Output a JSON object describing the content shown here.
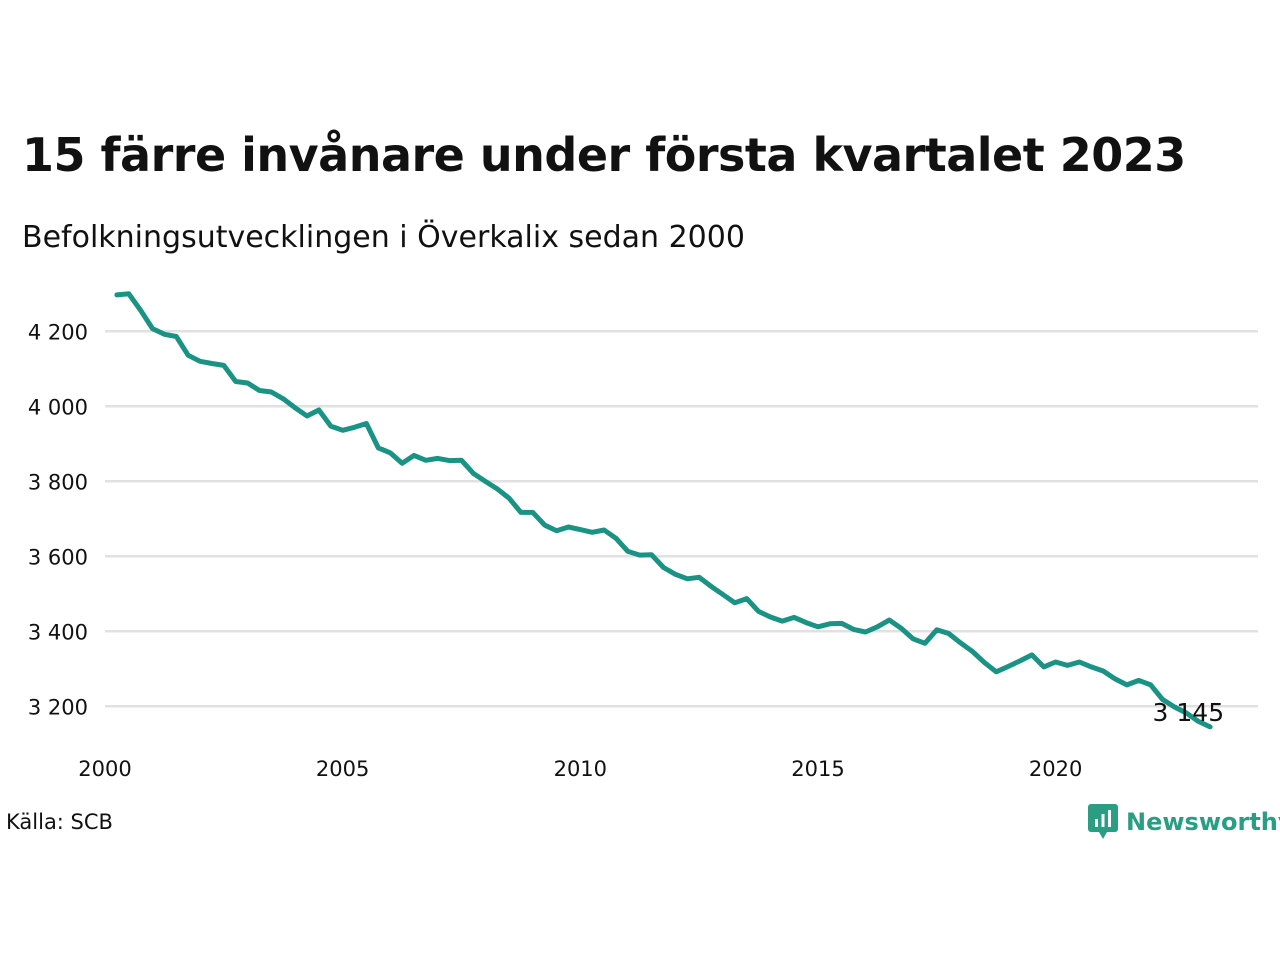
{
  "header": {
    "title": "15 färre invånare under första kvartalet 2023",
    "subtitle": "Befolkningsutvecklingen i Överkalix sedan 2000"
  },
  "footer": {
    "source": "Källa: SCB",
    "brand": "Newsworthy"
  },
  "colors": {
    "line": "#1a9384",
    "grid": "#e1e1e1",
    "brand": "#2a9d83"
  },
  "chart_data": {
    "type": "line",
    "xlim": [
      2000,
      2023.5
    ],
    "ylim": [
      3110,
      4310
    ],
    "x_ticks": [
      {
        "value": 2000,
        "label": "2000"
      },
      {
        "value": 2005,
        "label": "2005"
      },
      {
        "value": 2010,
        "label": "2010"
      },
      {
        "value": 2015,
        "label": "2015"
      },
      {
        "value": 2020,
        "label": "2020"
      }
    ],
    "y_ticks": [
      {
        "value": 3200,
        "label": "3 200"
      },
      {
        "value": 3400,
        "label": "3 400"
      },
      {
        "value": 3600,
        "label": "3 600"
      },
      {
        "value": 3800,
        "label": "3 800"
      },
      {
        "value": 4000,
        "label": "4 000"
      },
      {
        "value": 4200,
        "label": "4 200"
      }
    ],
    "grid": true,
    "end_label": "3 145",
    "series": [
      {
        "values": [
          [
            2000.25,
            4297
          ],
          [
            2000.5,
            4300
          ],
          [
            2000.75,
            4256
          ],
          [
            2001.0,
            4207
          ],
          [
            2001.25,
            4192
          ],
          [
            2001.5,
            4186
          ],
          [
            2001.75,
            4136
          ],
          [
            2002.0,
            4120
          ],
          [
            2002.25,
            4114
          ],
          [
            2002.5,
            4109
          ],
          [
            2002.75,
            4066
          ],
          [
            2003.0,
            4062
          ],
          [
            2003.25,
            4042
          ],
          [
            2003.5,
            4038
          ],
          [
            2003.75,
            4020
          ],
          [
            2004.0,
            3996
          ],
          [
            2004.25,
            3974
          ],
          [
            2004.5,
            3990
          ],
          [
            2004.75,
            3947
          ],
          [
            2005.0,
            3936
          ],
          [
            2005.25,
            3944
          ],
          [
            2005.5,
            3954
          ],
          [
            2005.75,
            3889
          ],
          [
            2006.0,
            3876
          ],
          [
            2006.25,
            3848
          ],
          [
            2006.5,
            3869
          ],
          [
            2006.75,
            3856
          ],
          [
            2007.0,
            3861
          ],
          [
            2007.25,
            3855
          ],
          [
            2007.5,
            3856
          ],
          [
            2007.75,
            3821
          ],
          [
            2008.0,
            3800
          ],
          [
            2008.25,
            3780
          ],
          [
            2008.5,
            3755
          ],
          [
            2008.75,
            3717
          ],
          [
            2009.0,
            3717
          ],
          [
            2009.25,
            3683
          ],
          [
            2009.5,
            3668
          ],
          [
            2009.75,
            3678
          ],
          [
            2010.0,
            3671
          ],
          [
            2010.25,
            3664
          ],
          [
            2010.5,
            3670
          ],
          [
            2010.75,
            3648
          ],
          [
            2011.0,
            3613
          ],
          [
            2011.25,
            3603
          ],
          [
            2011.5,
            3604
          ],
          [
            2011.75,
            3570
          ],
          [
            2012.0,
            3552
          ],
          [
            2012.25,
            3540
          ],
          [
            2012.5,
            3544
          ],
          [
            2012.75,
            3520
          ],
          [
            2013.0,
            3498
          ],
          [
            2013.25,
            3476
          ],
          [
            2013.5,
            3487
          ],
          [
            2013.75,
            3453
          ],
          [
            2014.0,
            3438
          ],
          [
            2014.25,
            3427
          ],
          [
            2014.5,
            3437
          ],
          [
            2014.75,
            3423
          ],
          [
            2015.0,
            3412
          ],
          [
            2015.25,
            3420
          ],
          [
            2015.5,
            3421
          ],
          [
            2015.75,
            3405
          ],
          [
            2016.0,
            3398
          ],
          [
            2016.25,
            3412
          ],
          [
            2016.5,
            3430
          ],
          [
            2016.75,
            3408
          ],
          [
            2017.0,
            3380
          ],
          [
            2017.25,
            3368
          ],
          [
            2017.5,
            3404
          ],
          [
            2017.75,
            3394
          ],
          [
            2018.0,
            3369
          ],
          [
            2018.25,
            3346
          ],
          [
            2018.5,
            3317
          ],
          [
            2018.75,
            3292
          ],
          [
            2019.0,
            3306
          ],
          [
            2019.25,
            3321
          ],
          [
            2019.5,
            3337
          ],
          [
            2019.75,
            3305
          ],
          [
            2020.0,
            3318
          ],
          [
            2020.25,
            3309
          ],
          [
            2020.5,
            3318
          ],
          [
            2020.75,
            3305
          ],
          [
            2021.0,
            3294
          ],
          [
            2021.25,
            3273
          ],
          [
            2021.5,
            3257
          ],
          [
            2021.75,
            3269
          ],
          [
            2022.0,
            3257
          ],
          [
            2022.25,
            3218
          ],
          [
            2022.5,
            3198
          ],
          [
            2022.75,
            3182
          ],
          [
            2023.0,
            3160
          ],
          [
            2023.25,
            3145
          ]
        ]
      }
    ]
  }
}
